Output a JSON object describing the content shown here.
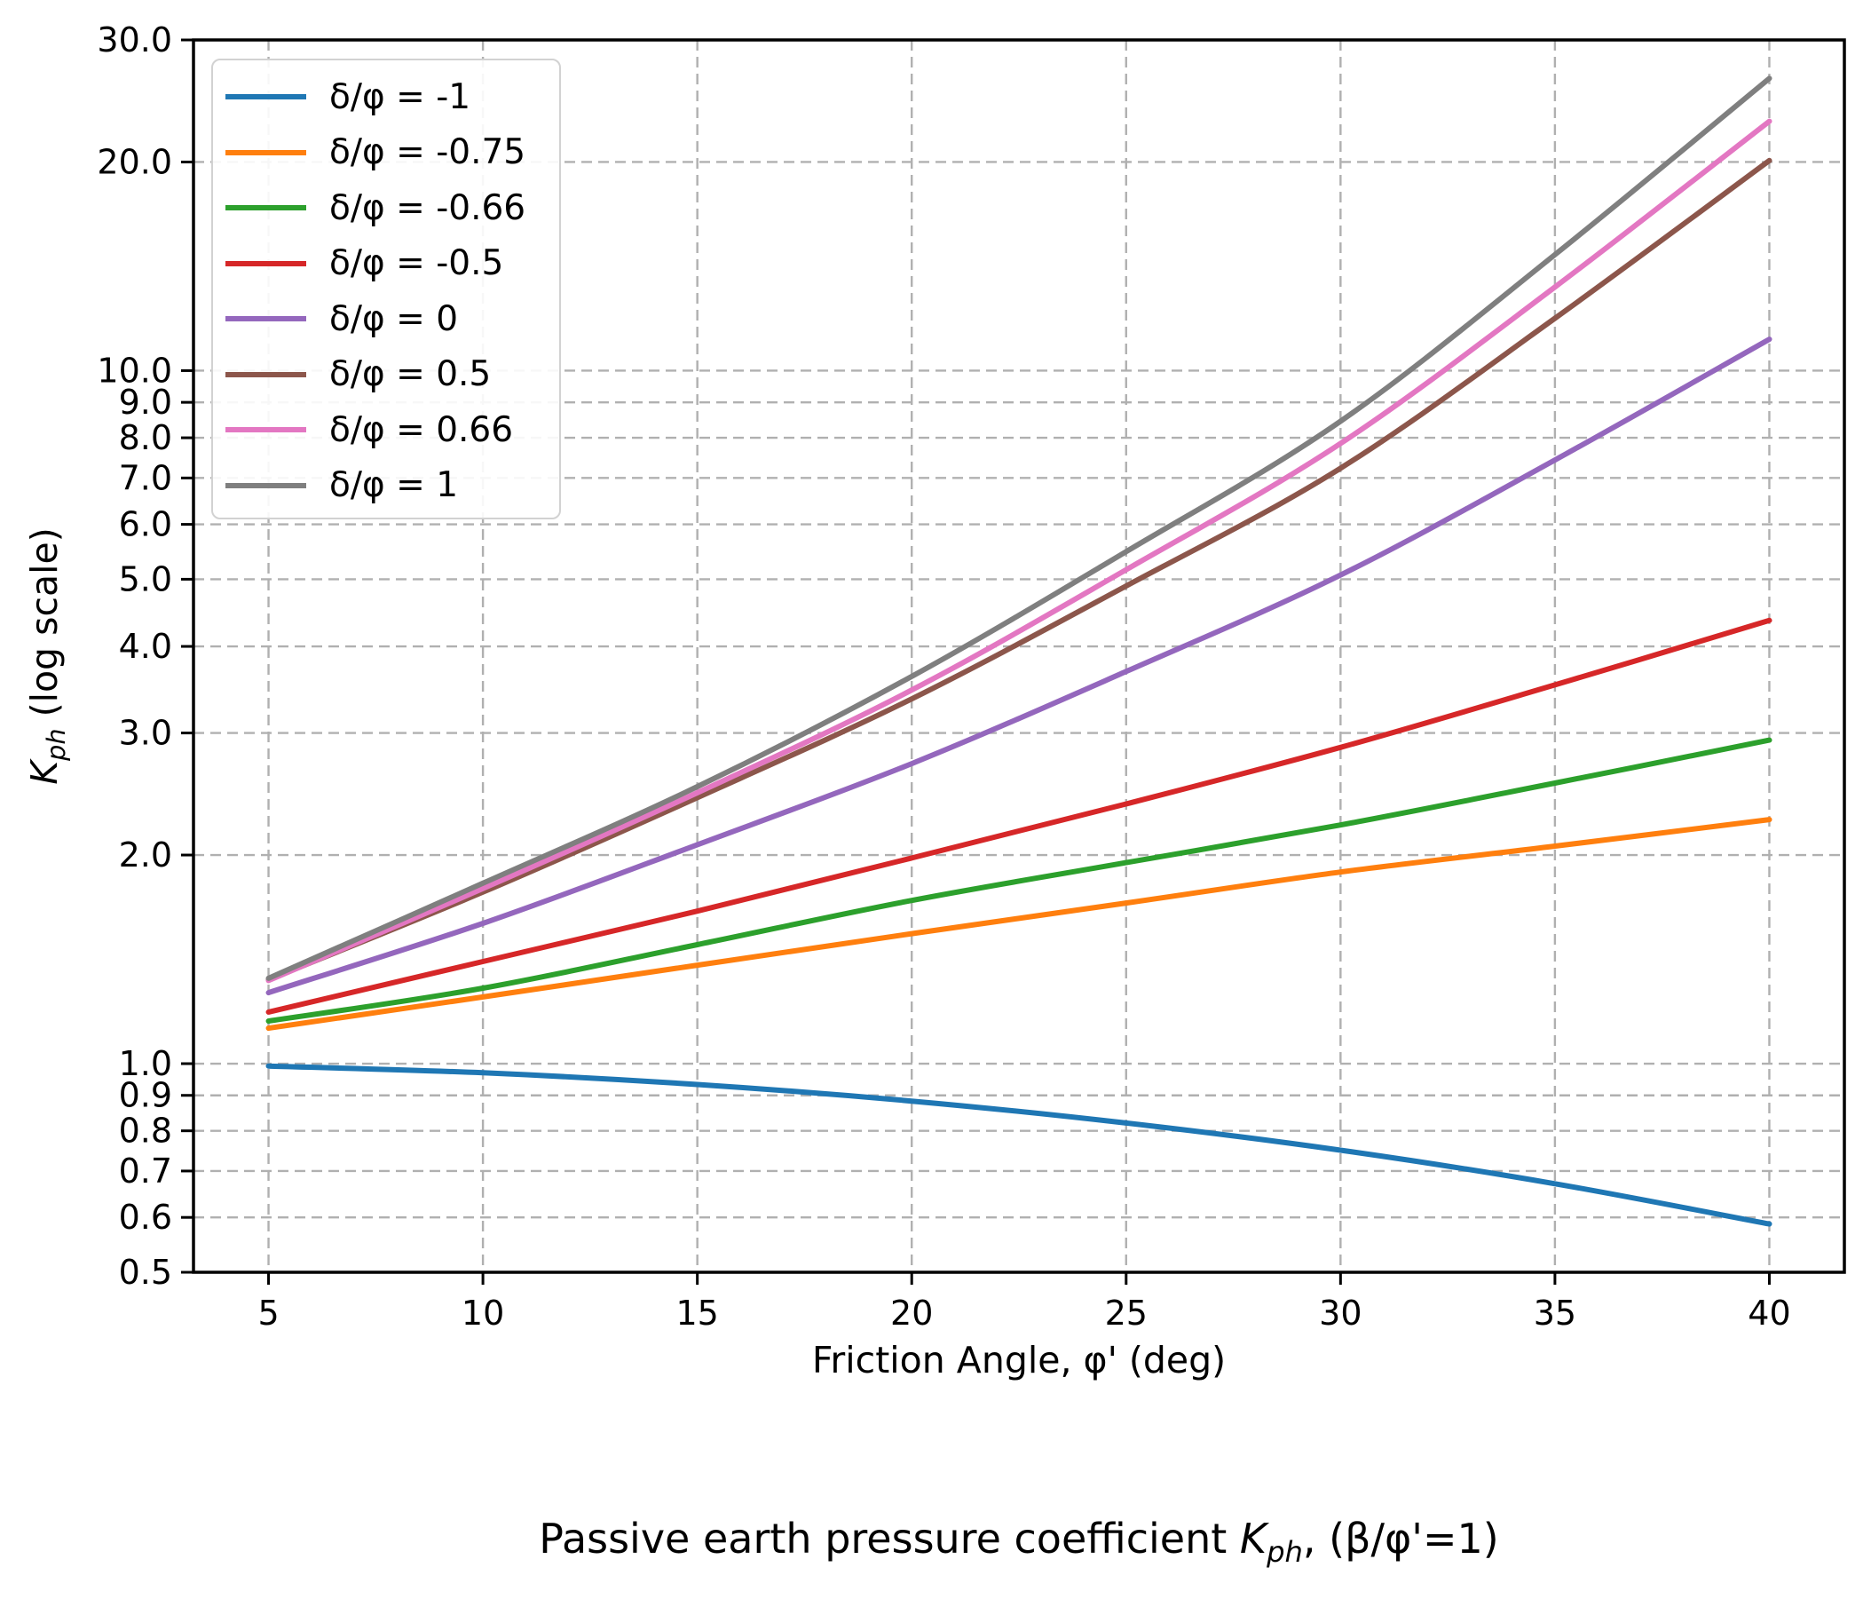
{
  "chart_data": {
    "type": "line",
    "title": "Passive earth pressure coefficient K_ph, (β/φ'=1)",
    "title_parts": {
      "pre": "Passive earth pressure coefficient ",
      "var": "K",
      "sub": "ph",
      "post": ", (β/φ'=1)"
    },
    "xlabel": "Friction Angle, φ' (deg)",
    "ylabel": "K_ph (log scale)",
    "ylabel_parts": {
      "var": "K",
      "sub": "ph",
      "rest": " (log scale)"
    },
    "yscale": "log",
    "grid": true,
    "legend_position": "upper left",
    "xlim": [
      3.25,
      41.75
    ],
    "ylim": [
      0.5,
      30
    ],
    "x": [
      5,
      10,
      15,
      20,
      25,
      30,
      35,
      40
    ],
    "x_ticks": [
      5,
      10,
      15,
      20,
      25,
      30,
      35,
      40
    ],
    "x_tick_labels": [
      "5",
      "10",
      "15",
      "20",
      "25",
      "30",
      "35",
      "40"
    ],
    "y_ticks": [
      30,
      20,
      10,
      9,
      8,
      7,
      6,
      5,
      4,
      3,
      2,
      1,
      0.9,
      0.8,
      0.7,
      0.6,
      0.5
    ],
    "y_tick_labels": [
      "30.0",
      "20.0",
      "10.0",
      "9.0",
      "8.0",
      "7.0",
      "6.0",
      "5.0",
      "4.0",
      "3.0",
      "2.0",
      "1.0",
      "0.9",
      "0.8",
      "0.7",
      "0.6",
      "0.5"
    ],
    "series": [
      {
        "name": "δ/φ = -1",
        "color": "#1f77b4",
        "values": [
          0.992,
          0.97,
          0.933,
          0.883,
          0.821,
          0.75,
          0.671,
          0.587
        ]
      },
      {
        "name": "δ/φ = -0.75",
        "color": "#ff7f0e",
        "values": [
          1.125,
          1.248,
          1.387,
          1.54,
          1.705,
          1.89,
          2.06,
          2.25
        ]
      },
      {
        "name": "δ/φ = -0.66",
        "color": "#2ca02c",
        "values": [
          1.152,
          1.285,
          1.485,
          1.72,
          1.95,
          2.21,
          2.54,
          2.93
        ]
      },
      {
        "name": "δ/φ = -0.5",
        "color": "#d62728",
        "values": [
          1.187,
          1.404,
          1.66,
          1.98,
          2.37,
          2.86,
          3.52,
          4.36
        ]
      },
      {
        "name": "δ/φ = 0",
        "color": "#9467bd",
        "values": [
          1.266,
          1.594,
          2.07,
          2.71,
          3.68,
          5.07,
          7.43,
          11.1
        ]
      },
      {
        "name": "δ/φ = 0.5",
        "color": "#8c564b",
        "values": [
          1.322,
          1.768,
          2.42,
          3.36,
          4.89,
          7.23,
          11.9,
          20.1
        ]
      },
      {
        "name": "δ/φ = 0.66",
        "color": "#e377c2",
        "values": [
          1.318,
          1.789,
          2.46,
          3.46,
          5.16,
          7.85,
          13.2,
          22.9
        ]
      },
      {
        "name": "δ/φ = 1",
        "color": "#7f7f7f",
        "values": [
          1.328,
          1.821,
          2.51,
          3.62,
          5.48,
          8.45,
          14.7,
          26.4
        ]
      }
    ]
  }
}
